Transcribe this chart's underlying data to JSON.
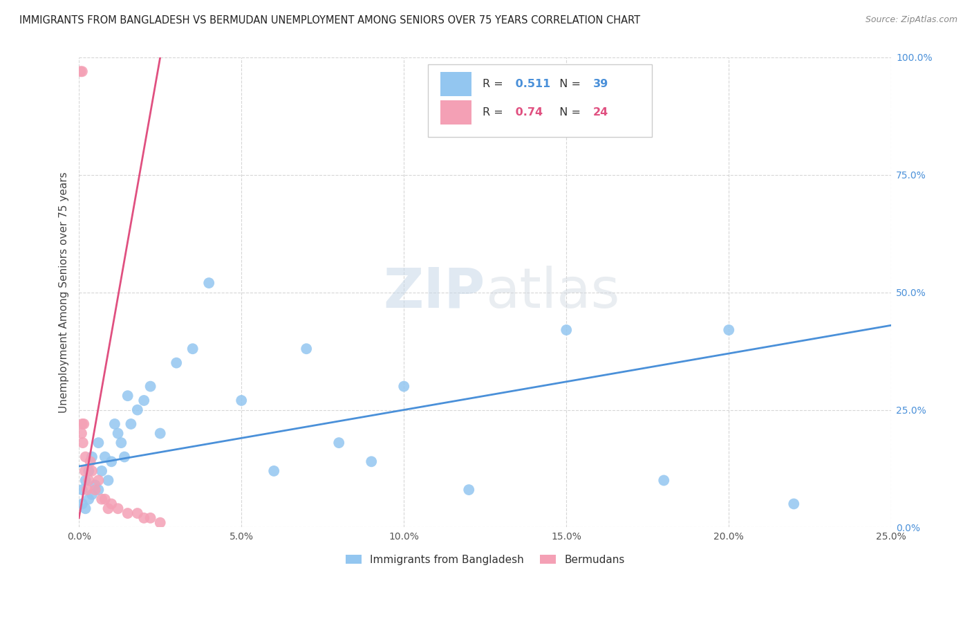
{
  "title": "IMMIGRANTS FROM BANGLADESH VS BERMUDAN UNEMPLOYMENT AMONG SENIORS OVER 75 YEARS CORRELATION CHART",
  "source": "Source: ZipAtlas.com",
  "ylabel": "Unemployment Among Seniors over 75 years",
  "legend_labels": [
    "Immigrants from Bangladesh",
    "Bermudans"
  ],
  "R_blue": 0.511,
  "N_blue": 39,
  "R_pink": 0.74,
  "N_pink": 24,
  "blue_color": "#93c6f0",
  "pink_color": "#f4a0b5",
  "blue_line_color": "#4a90d9",
  "pink_line_color": "#e05080",
  "watermark_zip": "ZIP",
  "watermark_atlas": "atlas",
  "xlim": [
    0,
    0.25
  ],
  "ylim": [
    0,
    1.0
  ],
  "xticks": [
    0.0,
    0.05,
    0.1,
    0.15,
    0.2,
    0.25
  ],
  "yticks": [
    0.0,
    0.25,
    0.5,
    0.75,
    1.0
  ],
  "blue_scatter_x": [
    0.001,
    0.002,
    0.001,
    0.003,
    0.002,
    0.004,
    0.003,
    0.005,
    0.004,
    0.006,
    0.007,
    0.008,
    0.006,
    0.009,
    0.01,
    0.012,
    0.011,
    0.013,
    0.015,
    0.014,
    0.016,
    0.018,
    0.02,
    0.022,
    0.025,
    0.03,
    0.035,
    0.04,
    0.05,
    0.06,
    0.07,
    0.08,
    0.09,
    0.1,
    0.12,
    0.15,
    0.18,
    0.2,
    0.22
  ],
  "blue_scatter_y": [
    0.05,
    0.04,
    0.08,
    0.06,
    0.1,
    0.07,
    0.12,
    0.09,
    0.15,
    0.08,
    0.12,
    0.15,
    0.18,
    0.1,
    0.14,
    0.2,
    0.22,
    0.18,
    0.28,
    0.15,
    0.22,
    0.25,
    0.27,
    0.3,
    0.2,
    0.35,
    0.38,
    0.52,
    0.27,
    0.12,
    0.38,
    0.18,
    0.14,
    0.3,
    0.08,
    0.42,
    0.1,
    0.42,
    0.05
  ],
  "pink_scatter_x": [
    0.0005,
    0.001,
    0.0008,
    0.0015,
    0.0012,
    0.002,
    0.0018,
    0.003,
    0.0025,
    0.004,
    0.0035,
    0.005,
    0.006,
    0.007,
    0.008,
    0.009,
    0.01,
    0.012,
    0.015,
    0.018,
    0.02,
    0.022,
    0.025,
    0.001
  ],
  "pink_scatter_y": [
    0.97,
    0.97,
    0.2,
    0.22,
    0.18,
    0.15,
    0.12,
    0.1,
    0.08,
    0.12,
    0.14,
    0.08,
    0.1,
    0.06,
    0.06,
    0.04,
    0.05,
    0.04,
    0.03,
    0.03,
    0.02,
    0.02,
    0.01,
    0.22
  ],
  "blue_line_x": [
    0.0,
    0.25
  ],
  "blue_line_y": [
    0.13,
    0.43
  ],
  "pink_line_x": [
    0.0,
    0.025
  ],
  "pink_line_y": [
    0.02,
    1.0
  ],
  "grid_color": "#cccccc",
  "bg_color": "#ffffff"
}
